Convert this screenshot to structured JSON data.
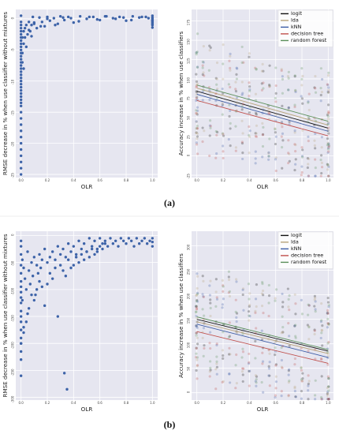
{
  "captions": {
    "a": "(a)",
    "b": "(b)"
  },
  "chart_data": [
    {
      "id": "a-left",
      "type": "scatter",
      "xlabel": "OLR",
      "ylabel": "RMSE decrease in % when use classifier without mixtures",
      "xlim": [
        -0.04,
        1.04
      ],
      "ylim": [
        -25.5,
        1.5
      ],
      "xticks": [
        "0.0",
        "0.2",
        "0.4",
        "0.6",
        "0.8",
        "1.0"
      ],
      "yticks": [
        "0",
        "-5",
        "-10",
        "-15",
        "-20",
        "-25"
      ],
      "grid": true,
      "point_color": "#3d63a8",
      "x": [
        0.0,
        0.0,
        0.0,
        0.0,
        0.0,
        0.0,
        0.0,
        0.0,
        0.0,
        0.0,
        0.0,
        0.0,
        0.0,
        0.0,
        0.0,
        0.0,
        0.0,
        0.0,
        0.0,
        0.0,
        0.0,
        0.0,
        0.0,
        0.0,
        0.0,
        0.0,
        0.0,
        0.0,
        0.0,
        0.0,
        0.0,
        0.0,
        0.0,
        0.0,
        0.0,
        0.0,
        0.0,
        0.0,
        0.0,
        0.0,
        0.01,
        0.01,
        0.01,
        0.02,
        0.02,
        0.03,
        0.03,
        0.04,
        0.05,
        0.06,
        0.07,
        0.08,
        0.09,
        0.1,
        0.12,
        0.14,
        0.16,
        0.18,
        0.2,
        0.22,
        0.25,
        0.28,
        0.3,
        0.33,
        0.36,
        0.4,
        0.45,
        0.5,
        0.55,
        0.6,
        0.65,
        0.7,
        0.75,
        0.8,
        0.85,
        0.9,
        0.95,
        1.0,
        1.0,
        1.0,
        1.0,
        1.0,
        1.0,
        1.0,
        1.0,
        1.0,
        0.02,
        0.04,
        0.06,
        0.08,
        0.1,
        0.15,
        0.2,
        0.26,
        0.32,
        0.38,
        0.44,
        0.52,
        0.58,
        0.64,
        0.72,
        0.78,
        0.84,
        0.92,
        0.97,
        1.0
      ],
      "y": [
        0.5,
        -0.5,
        -1.0,
        -1.5,
        -2.0,
        -2.5,
        -3.0,
        -3.5,
        -4.0,
        -4.5,
        -5.0,
        -5.5,
        -6.0,
        -6.5,
        -7.0,
        -7.5,
        -8.0,
        -8.5,
        -9.0,
        -9.5,
        -10.0,
        -10.5,
        -11.0,
        -11.5,
        -12.0,
        -12.5,
        -13.0,
        -13.5,
        -14.0,
        -15.0,
        -16.0,
        -17.0,
        -18.0,
        -19.0,
        -20.0,
        -21.0,
        -22.0,
        -23.0,
        -24.0,
        -25.0,
        -3.0,
        -5.5,
        -7.0,
        -2.0,
        -4.0,
        -1.5,
        -3.0,
        -1.0,
        -2.5,
        -0.5,
        -2.0,
        -1.0,
        0.3,
        -0.8,
        -1.5,
        0.2,
        -0.5,
        -1.2,
        0.3,
        -0.3,
        0.1,
        -0.8,
        0.4,
        -0.2,
        0.3,
        -0.6,
        0.4,
        0.0,
        0.3,
        -0.2,
        0.4,
        0.1,
        0.3,
        -0.3,
        0.4,
        0.2,
        0.3,
        0.5,
        0.0,
        -0.3,
        -0.6,
        -1.0,
        -1.4,
        -0.2,
        0.2,
        -0.8,
        -8.0,
        -4.5,
        -1.8,
        -2.8,
        -0.6,
        -1.2,
        0.0,
        -1.0,
        0.2,
        0.1,
        -0.4,
        0.3,
        -0.1,
        0.4,
        0.0,
        0.2,
        -0.2,
        0.3,
        0.1,
        -0.4
      ]
    },
    {
      "id": "a-right",
      "type": "scatter",
      "xlabel": "OLR",
      "ylabel": "Accuracy increase in % when use classifiers",
      "xlim": [
        -0.04,
        1.04
      ],
      "ylim": [
        -28,
        190
      ],
      "xticks": [
        "0.0",
        "0.2",
        "0.4",
        "0.6",
        "0.8",
        "1.0"
      ],
      "yticks": [
        "175",
        "150",
        "125",
        "100",
        "75",
        "50",
        "25",
        "0",
        "-25"
      ],
      "grid": true,
      "legend_position": "top-right",
      "series": [
        {
          "name": "logit",
          "color": "#111111",
          "fit": [
            84,
            36
          ]
        },
        {
          "name": "lda",
          "color": "#b8a37a",
          "fit": [
            88,
            40
          ]
        },
        {
          "name": "kNN",
          "color": "#3b5ba6",
          "fit": [
            80,
            32
          ]
        },
        {
          "name": "decision tree",
          "color": "#c0504d",
          "fit": [
            72,
            26
          ]
        },
        {
          "name": "random forest",
          "color": "#5a8f5a",
          "fit": [
            92,
            45
          ]
        }
      ]
    },
    {
      "id": "b-left",
      "type": "scatter",
      "xlabel": "OLR",
      "ylabel": "RMSE decrease in % when use classifier without mixtures",
      "xlim": [
        -0.04,
        1.04
      ],
      "ylim": [
        -305,
        8
      ],
      "xticks": [
        "0.0",
        "0.2",
        "0.4",
        "0.6",
        "0.8",
        "1.0"
      ],
      "yticks": [
        "0",
        "-50",
        "-100",
        "-150",
        "-200",
        "-250",
        "-300"
      ],
      "grid": true,
      "point_color": "#3d63a8",
      "x": [
        0.0,
        0.0,
        0.0,
        0.0,
        0.0,
        0.0,
        0.0,
        0.0,
        0.0,
        0.0,
        0.0,
        0.0,
        0.0,
        0.0,
        0.0,
        0.0,
        0.0,
        0.0,
        0.01,
        0.01,
        0.02,
        0.02,
        0.03,
        0.04,
        0.05,
        0.05,
        0.06,
        0.07,
        0.08,
        0.09,
        0.1,
        0.11,
        0.12,
        0.13,
        0.14,
        0.15,
        0.16,
        0.18,
        0.2,
        0.22,
        0.24,
        0.26,
        0.28,
        0.3,
        0.32,
        0.34,
        0.36,
        0.38,
        0.4,
        0.42,
        0.44,
        0.46,
        0.48,
        0.5,
        0.52,
        0.54,
        0.56,
        0.58,
        0.6,
        0.62,
        0.64,
        0.66,
        0.68,
        0.7,
        0.72,
        0.74,
        0.76,
        0.78,
        0.8,
        0.82,
        0.84,
        0.86,
        0.88,
        0.9,
        0.92,
        0.94,
        0.96,
        0.98,
        1.0,
        1.0,
        1.0,
        0.36,
        0.38,
        0.4,
        0.42,
        0.44,
        0.46,
        0.48,
        0.5,
        0.52,
        0.54,
        0.56,
        0.58,
        0.6,
        0.62,
        0.64,
        0.3,
        0.32,
        0.34,
        0.18,
        0.2,
        0.22,
        0.24,
        0.26,
        0.12,
        0.14,
        0.1,
        0.06,
        0.04,
        0.02,
        0.0,
        0.0,
        0.08,
        0.16,
        0.28,
        0.35,
        0.33
      ],
      "y": [
        -10,
        -35,
        -55,
        -70,
        -85,
        -95,
        -105,
        -115,
        -125,
        -140,
        -150,
        -160,
        -175,
        -190,
        -200,
        -215,
        -260,
        -20,
        -45,
        -120,
        -60,
        -170,
        -80,
        -100,
        -30,
        -145,
        -65,
        -90,
        -50,
        -75,
        -40,
        -110,
        -55,
        -70,
        -35,
        -60,
        -45,
        -25,
        -50,
        -40,
        -30,
        -45,
        -20,
        -35,
        -25,
        -40,
        -15,
        -30,
        -20,
        -35,
        -10,
        -25,
        -15,
        -30,
        -5,
        -20,
        -10,
        -25,
        -5,
        -15,
        -10,
        -20,
        -5,
        -15,
        -10,
        -20,
        -5,
        -10,
        -15,
        -5,
        -10,
        -20,
        -5,
        -15,
        -10,
        -5,
        -15,
        -10,
        -5,
        -20,
        -12,
        -45,
        -60,
        -55,
        -40,
        -50,
        -35,
        -45,
        -30,
        -40,
        -25,
        -35,
        -30,
        -20,
        -25,
        -15,
        -55,
        -65,
        -75,
        -130,
        -90,
        -70,
        -80,
        -60,
        -100,
        -85,
        -120,
        -135,
        -160,
        -180,
        -200,
        -230,
        -110,
        -95,
        -150,
        -285,
        -255
      ]
    },
    {
      "id": "b-right",
      "type": "scatter",
      "xlabel": "OLR",
      "ylabel": "Accuracy increase in % when use classifiers",
      "xlim": [
        -0.04,
        1.04
      ],
      "ylim": [
        -15,
        330
      ],
      "xticks": [
        "0.0",
        "0.2",
        "0.4",
        "0.6",
        "0.8",
        "1.0"
      ],
      "yticks": [
        "300",
        "250",
        "200",
        "150",
        "100",
        "50",
        "0"
      ],
      "grid": true,
      "legend_position": "top-right",
      "series": [
        {
          "name": "logit",
          "color": "#111111",
          "fit": [
            150,
            85
          ]
        },
        {
          "name": "lda",
          "color": "#b8a37a",
          "fit": [
            145,
            80
          ]
        },
        {
          "name": "kNN",
          "color": "#3b5ba6",
          "fit": [
            140,
            72
          ]
        },
        {
          "name": "decision tree",
          "color": "#c0504d",
          "fit": [
            125,
            60
          ]
        },
        {
          "name": "random forest",
          "color": "#5a8f5a",
          "fit": [
            155,
            88
          ]
        }
      ]
    }
  ]
}
